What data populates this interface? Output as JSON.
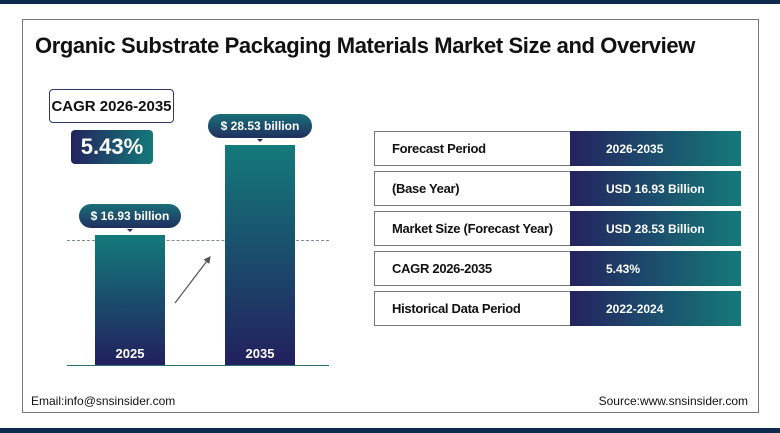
{
  "title": "Organic Substrate Packaging Materials Market Size and Overview",
  "cagr": {
    "label": "CAGR 2026-2035",
    "value": "5.43%"
  },
  "chart_data": {
    "type": "bar",
    "categories": [
      "2025",
      "2035"
    ],
    "values": [
      16.93,
      28.53
    ],
    "data_labels": [
      "$ 16.93 billion",
      "$ 28.53 billion"
    ],
    "colors": [
      "#147a7a",
      "#23235e"
    ]
  },
  "table": [
    {
      "key": "Forecast Period",
      "value": "2026-2035"
    },
    {
      "key": "(Base Year)",
      "value": "USD  16.93 Billion"
    },
    {
      "key": "Market Size (Forecast Year)",
      "value": "USD 28.53 Billion"
    },
    {
      "key": "CAGR 2026-2035",
      "value": "5.43%"
    },
    {
      "key": "Historical Data Period",
      "value": "2022-2024"
    }
  ],
  "footer": {
    "email": "Email:info@snsinsider.com",
    "source": "Source:www.snsinsider.com"
  }
}
